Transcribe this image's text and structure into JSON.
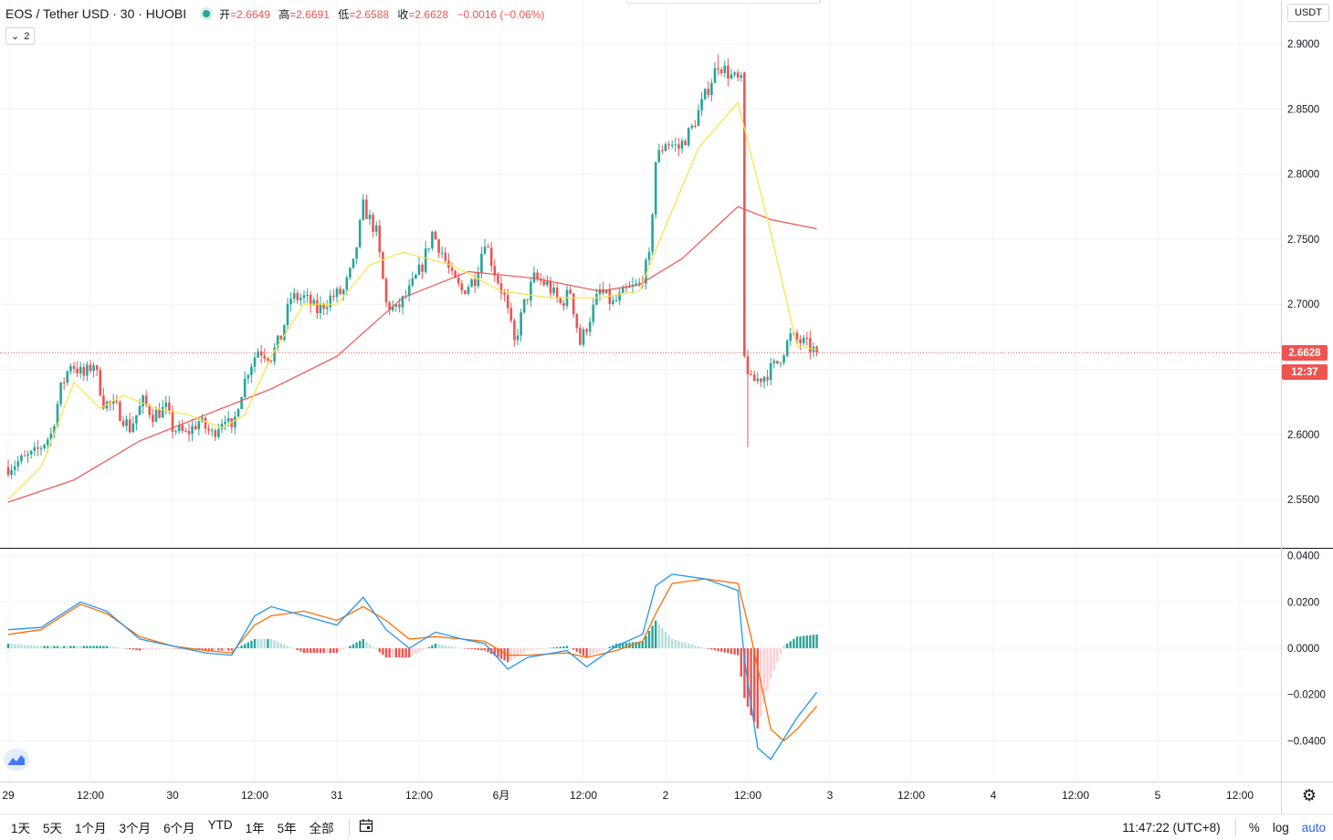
{
  "header": {
    "symbol": "EOS / Tether USD · 30 · HUOBI",
    "open_label": "开",
    "open": "2.6649",
    "high_label": "高",
    "high": "2.6691",
    "low_label": "低",
    "low": "2.6588",
    "close_label": "收",
    "close": "2.6628",
    "change": "−0.0016 (−0.06%)",
    "studies_toggle": "2",
    "studies_chevron": "⌄"
  },
  "currency_label": "USDT",
  "last_price": "2.6628",
  "countdown": "12:37",
  "colors": {
    "up": "#26a69a",
    "down": "#ef5350",
    "ma_fast": "#fbe146",
    "ma_slow": "#ef5350",
    "macd": "#2196f3",
    "signal": "#ff6d00",
    "grid": "#f0f3fa",
    "axis_text": "#131722"
  },
  "price_axis_labels": [
    "2.9000",
    "2.8500",
    "2.8000",
    "2.7500",
    "2.7000",
    "2.6500",
    "2.6000",
    "2.5500"
  ],
  "macd_axis_labels": [
    "0.0400",
    "0.0200",
    "0.0000",
    "−0.0200",
    "−0.0400"
  ],
  "time_axis_labels": [
    "29",
    "12:00",
    "30",
    "12:00",
    "31",
    "12:00",
    "6月",
    "12:00",
    "2",
    "12:00",
    "3",
    "12:00",
    "4",
    "12:00",
    "5",
    "12:00"
  ],
  "bottom_toolbar": {
    "ranges": [
      "1天",
      "5天",
      "1个月",
      "3个月",
      "6个月",
      "YTD",
      "1年",
      "5年",
      "全部"
    ],
    "calendar_icon": "calendar-icon",
    "clock": "11:47:22 (UTC+8)",
    "percent": "%",
    "log": "log",
    "auto": "auto"
  },
  "chart_data": [
    {
      "type": "candlestick",
      "x_unit": "30-minute bar index (0 = first visible bar, 2 bars per hour)",
      "ylim": [
        2.515,
        2.925
      ],
      "price_ticks": [
        2.55,
        2.6,
        2.65,
        2.7,
        2.75,
        2.8,
        2.85,
        2.9
      ],
      "last_price": 2.6628,
      "anchors": [
        [
          0,
          2.575
        ],
        [
          8,
          2.585
        ],
        [
          13,
          2.6
        ],
        [
          16,
          2.635
        ],
        [
          19,
          2.655
        ],
        [
          23,
          2.645
        ],
        [
          26,
          2.655
        ],
        [
          29,
          2.625
        ],
        [
          33,
          2.62
        ],
        [
          37,
          2.605
        ],
        [
          41,
          2.625
        ],
        [
          44,
          2.615
        ],
        [
          48,
          2.62
        ],
        [
          50,
          2.605
        ],
        [
          54,
          2.6
        ],
        [
          58,
          2.61
        ],
        [
          62,
          2.6
        ],
        [
          66,
          2.615
        ],
        [
          68,
          2.6
        ],
        [
          70,
          2.625
        ],
        [
          73,
          2.65
        ],
        [
          76,
          2.665
        ],
        [
          80,
          2.66
        ],
        [
          83,
          2.675
        ],
        [
          86,
          2.705
        ],
        [
          90,
          2.705
        ],
        [
          94,
          2.695
        ],
        [
          98,
          2.705
        ],
        [
          102,
          2.71
        ],
        [
          105,
          2.73
        ],
        [
          108,
          2.775
        ],
        [
          112,
          2.755
        ],
        [
          115,
          2.7
        ],
        [
          118,
          2.695
        ],
        [
          122,
          2.71
        ],
        [
          126,
          2.73
        ],
        [
          129,
          2.755
        ],
        [
          132,
          2.74
        ],
        [
          135,
          2.72
        ],
        [
          138,
          2.71
        ],
        [
          142,
          2.72
        ],
        [
          145,
          2.75
        ],
        [
          148,
          2.725
        ],
        [
          151,
          2.705
        ],
        [
          154,
          2.67
        ],
        [
          157,
          2.7
        ],
        [
          160,
          2.72
        ],
        [
          164,
          2.715
        ],
        [
          168,
          2.7
        ],
        [
          171,
          2.71
        ],
        [
          174,
          2.67
        ],
        [
          177,
          2.69
        ],
        [
          180,
          2.71
        ],
        [
          184,
          2.7
        ],
        [
          188,
          2.71
        ],
        [
          192,
          2.715
        ],
        [
          195,
          2.735
        ],
        [
          197,
          2.81
        ],
        [
          200,
          2.825
        ],
        [
          204,
          2.82
        ],
        [
          208,
          2.835
        ],
        [
          212,
          2.86
        ],
        [
          216,
          2.885
        ],
        [
          220,
          2.875
        ],
        [
          223,
          2.87
        ],
        [
          224,
          2.66
        ],
        [
          226,
          2.64
        ],
        [
          230,
          2.645
        ],
        [
          234,
          2.655
        ],
        [
          238,
          2.675
        ],
        [
          242,
          2.67
        ],
        [
          246,
          2.663
        ]
      ],
      "wick_extremes": {
        "high": 2.892,
        "low": 2.59
      }
    },
    {
      "type": "line",
      "name": "moving averages",
      "series_fast": [
        [
          0,
          2.55
        ],
        [
          10,
          2.575
        ],
        [
          20,
          2.64
        ],
        [
          28,
          2.62
        ],
        [
          35,
          2.63
        ],
        [
          45,
          2.62
        ],
        [
          55,
          2.615
        ],
        [
          65,
          2.605
        ],
        [
          72,
          2.615
        ],
        [
          80,
          2.66
        ],
        [
          90,
          2.7
        ],
        [
          100,
          2.7
        ],
        [
          110,
          2.73
        ],
        [
          120,
          2.74
        ],
        [
          135,
          2.73
        ],
        [
          150,
          2.71
        ],
        [
          165,
          2.705
        ],
        [
          180,
          2.705
        ],
        [
          192,
          2.71
        ],
        [
          200,
          2.76
        ],
        [
          210,
          2.82
        ],
        [
          222,
          2.855
        ],
        [
          232,
          2.755
        ],
        [
          240,
          2.668
        ],
        [
          246,
          2.665
        ]
      ],
      "series_slow": [
        [
          0,
          2.548
        ],
        [
          20,
          2.565
        ],
        [
          40,
          2.595
        ],
        [
          60,
          2.615
        ],
        [
          80,
          2.635
        ],
        [
          100,
          2.66
        ],
        [
          120,
          2.705
        ],
        [
          140,
          2.725
        ],
        [
          160,
          2.72
        ],
        [
          180,
          2.71
        ],
        [
          192,
          2.715
        ],
        [
          205,
          2.735
        ],
        [
          222,
          2.775
        ],
        [
          232,
          2.765
        ],
        [
          246,
          2.758
        ]
      ]
    },
    {
      "type": "macd",
      "ylim": [
        -0.058,
        0.041
      ],
      "ticks": [
        -0.04,
        -0.02,
        0,
        0.02,
        0.04
      ],
      "macd_line": [
        [
          0,
          0.008
        ],
        [
          10,
          0.009
        ],
        [
          22,
          0.02
        ],
        [
          30,
          0.016
        ],
        [
          40,
          0.004
        ],
        [
          50,
          0.001
        ],
        [
          60,
          -0.002
        ],
        [
          68,
          -0.003
        ],
        [
          75,
          0.014
        ],
        [
          80,
          0.018
        ],
        [
          90,
          0.014
        ],
        [
          100,
          0.01
        ],
        [
          108,
          0.022
        ],
        [
          115,
          0.008
        ],
        [
          122,
          0.0
        ],
        [
          130,
          0.007
        ],
        [
          138,
          0.004
        ],
        [
          145,
          0.002
        ],
        [
          152,
          -0.009
        ],
        [
          158,
          -0.004
        ],
        [
          170,
          -0.001
        ],
        [
          176,
          -0.008
        ],
        [
          185,
          0.001
        ],
        [
          193,
          0.006
        ],
        [
          197,
          0.027
        ],
        [
          202,
          0.032
        ],
        [
          212,
          0.03
        ],
        [
          222,
          0.025
        ],
        [
          224,
          -0.005
        ],
        [
          228,
          -0.043
        ],
        [
          232,
          -0.048
        ],
        [
          240,
          -0.03
        ],
        [
          246,
          -0.019
        ]
      ],
      "signal_line": [
        [
          0,
          0.006
        ],
        [
          10,
          0.008
        ],
        [
          22,
          0.019
        ],
        [
          30,
          0.015
        ],
        [
          40,
          0.005
        ],
        [
          50,
          0.001
        ],
        [
          60,
          -0.001
        ],
        [
          68,
          -0.002
        ],
        [
          75,
          0.01
        ],
        [
          80,
          0.014
        ],
        [
          90,
          0.016
        ],
        [
          100,
          0.012
        ],
        [
          108,
          0.018
        ],
        [
          115,
          0.012
        ],
        [
          122,
          0.004
        ],
        [
          130,
          0.005
        ],
        [
          138,
          0.004
        ],
        [
          145,
          0.003
        ],
        [
          152,
          -0.003
        ],
        [
          158,
          -0.003
        ],
        [
          170,
          -0.002
        ],
        [
          176,
          -0.004
        ],
        [
          185,
          -0.001
        ],
        [
          193,
          0.003
        ],
        [
          197,
          0.015
        ],
        [
          202,
          0.028
        ],
        [
          212,
          0.03
        ],
        [
          222,
          0.028
        ],
        [
          226,
          0.005
        ],
        [
          232,
          -0.035
        ],
        [
          236,
          -0.04
        ],
        [
          240,
          -0.035
        ],
        [
          246,
          -0.025
        ]
      ]
    }
  ]
}
